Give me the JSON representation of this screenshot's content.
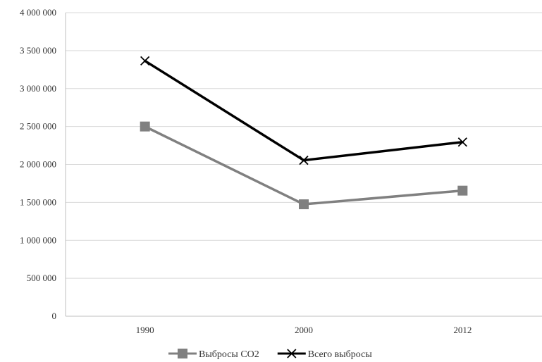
{
  "chart_data": {
    "type": "line",
    "categories": [
      "1990",
      "2000",
      "2012"
    ],
    "series": [
      {
        "name": "Выбросы CO2",
        "values": [
          2500000,
          1475000,
          1655000
        ],
        "color": "#808080",
        "marker": "square"
      },
      {
        "name": "Всего выбросы",
        "values": [
          3365000,
          2055000,
          2295000
        ],
        "color": "#000000",
        "marker": "x"
      }
    ],
    "ylim": [
      0,
      4000000
    ],
    "yticks": [
      0,
      500000,
      1000000,
      1500000,
      2000000,
      2500000,
      3000000,
      3500000,
      4000000
    ],
    "ytick_labels": [
      "0",
      "500 000",
      "1 000 000",
      "1 500 000",
      "2 000 000",
      "2 500 000",
      "3 000 000",
      "3 500 000",
      "4 000 000"
    ],
    "grid": true,
    "legend": "bottom",
    "title": "",
    "xlabel": "",
    "ylabel": ""
  }
}
